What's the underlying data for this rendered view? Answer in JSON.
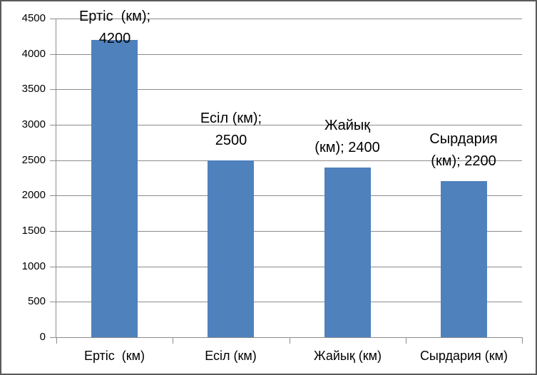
{
  "chart_data": {
    "type": "bar",
    "title": "",
    "xlabel": "",
    "ylabel": "",
    "categories": [
      "Ертіс  (км)",
      "Есіл (км)",
      "Жайық (км)",
      "Сырдария (км)"
    ],
    "values": [
      4200,
      2500,
      2400,
      2200
    ],
    "data_labels": [
      [
        "Ертіс  (км);",
        "4200"
      ],
      [
        "Есіл (км);",
        "2500"
      ],
      [
        "Жайық",
        "(км); 2400"
      ],
      [
        "Сырдария",
        "(км); 2200"
      ]
    ],
    "y_ticks": [
      0,
      500,
      1000,
      1500,
      2000,
      2500,
      3000,
      3500,
      4000,
      4500
    ],
    "ylim": [
      0,
      4500
    ],
    "grid": true,
    "legend": false,
    "colors": {
      "bar_fill": "#4F81BD",
      "gridline": "#8C8C8C",
      "axis": "#8C8C8C",
      "text": "#000000",
      "frame_border": "#5a5a5a",
      "background": "#FFFFFF"
    }
  }
}
